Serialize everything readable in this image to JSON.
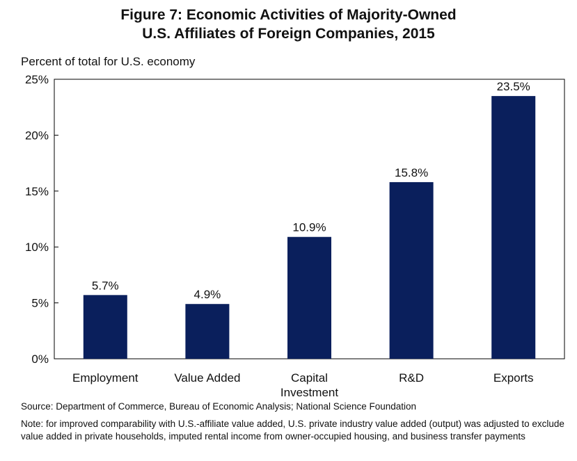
{
  "chart_data": {
    "type": "bar",
    "title": "Figure 7: Economic Activities of Majority-Owned",
    "subtitle": "U.S. Affiliates of Foreign Companies, 2015",
    "ylabel": "Percent of total for U.S. economy",
    "xlabel": "",
    "categories": [
      "Employment",
      "Value Added",
      "Capital Investment",
      "R&D",
      "Exports"
    ],
    "category_lines": [
      [
        "Employment"
      ],
      [
        "Value Added"
      ],
      [
        "Capital",
        "Investment"
      ],
      [
        "R&D"
      ],
      [
        "Exports"
      ]
    ],
    "values": [
      5.7,
      4.9,
      10.9,
      15.8,
      23.5
    ],
    "value_labels": [
      "5.7%",
      "4.9%",
      "10.9%",
      "15.8%",
      "23.5%"
    ],
    "ylim": [
      0,
      25
    ],
    "yticks": [
      0,
      5,
      10,
      15,
      20,
      25
    ],
    "ytick_labels": [
      "0%",
      "5%",
      "10%",
      "15%",
      "20%",
      "25%"
    ],
    "grid": false,
    "legend": "none",
    "bar_color": "#0a1f5c"
  },
  "source": "Source: Department of Commerce, Bureau of Economic Analysis; National Science Foundation",
  "note": "Note: for improved comparability with U.S.-affiliate value added, U.S. private industry value added (output) was adjusted to exclude value added in private households, imputed rental income from owner-occupied housing, and business transfer payments"
}
